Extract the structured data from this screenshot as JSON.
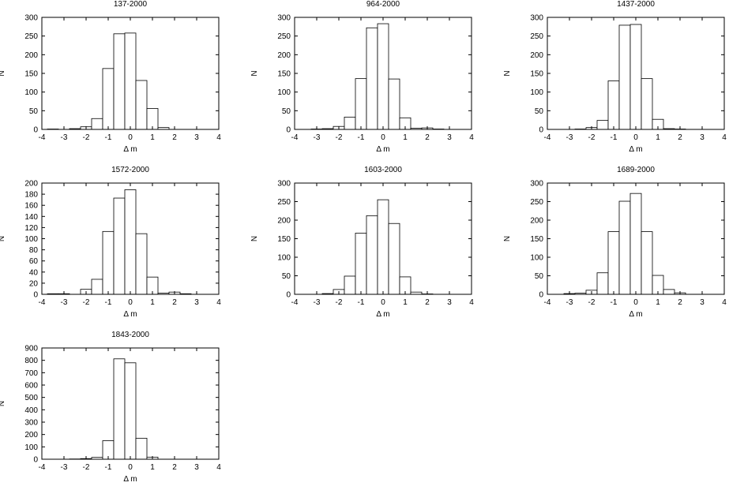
{
  "chart_data": [
    {
      "type": "bar",
      "title": "137-2000",
      "xlabel": "Δ m",
      "ylabel": "N",
      "xlim": [
        -4,
        4
      ],
      "ylim": [
        0,
        300
      ],
      "xticks": [
        "-4",
        "-3",
        "-2",
        "-1",
        "0",
        "1",
        "2",
        "3",
        "4"
      ],
      "yticks": [
        "0",
        "50",
        "100",
        "150",
        "200",
        "250",
        "300"
      ],
      "bin_width": 0.5,
      "bin_starts": [
        -3.75,
        -3.25,
        -2.75,
        -2.25,
        -1.75,
        -1.25,
        -0.75,
        -0.25,
        0.25,
        0.75,
        1.25,
        1.75,
        2.25,
        2.75,
        3.25
      ],
      "values": [
        1,
        0,
        2,
        7,
        29,
        163,
        256,
        258,
        131,
        56,
        5,
        0,
        0,
        0,
        0
      ]
    },
    {
      "type": "bar",
      "title": "964-2000",
      "xlabel": "Δ m",
      "ylabel": "N",
      "xlim": [
        -4,
        4
      ],
      "ylim": [
        0,
        300
      ],
      "xticks": [
        "-4",
        "-3",
        "-2",
        "-1",
        "0",
        "1",
        "2",
        "3",
        "4"
      ],
      "yticks": [
        "0",
        "50",
        "100",
        "150",
        "200",
        "250",
        "300"
      ],
      "bin_width": 0.5,
      "bin_starts": [
        -3.75,
        -3.25,
        -2.75,
        -2.25,
        -1.75,
        -1.25,
        -0.75,
        -0.25,
        0.25,
        0.75,
        1.25,
        1.75,
        2.25,
        2.75,
        3.25
      ],
      "values": [
        0,
        1,
        2,
        8,
        33,
        136,
        272,
        283,
        135,
        31,
        3,
        4,
        1,
        0,
        0
      ]
    },
    {
      "type": "bar",
      "title": "1437-2000",
      "xlabel": "Δ m",
      "ylabel": "N",
      "xlim": [
        -4,
        4
      ],
      "ylim": [
        0,
        300
      ],
      "xticks": [
        "-4",
        "-3",
        "-2",
        "-1",
        "0",
        "1",
        "2",
        "3",
        "4"
      ],
      "yticks": [
        "0",
        "50",
        "100",
        "150",
        "200",
        "250",
        "300"
      ],
      "bin_width": 0.5,
      "bin_starts": [
        -3.75,
        -3.25,
        -2.75,
        -2.25,
        -1.75,
        -1.25,
        -0.75,
        -0.25,
        0.25,
        0.75,
        1.25,
        1.75,
        2.25,
        2.75,
        3.25
      ],
      "values": [
        0,
        0,
        1,
        5,
        24,
        130,
        279,
        281,
        136,
        27,
        2,
        1,
        0,
        0,
        0
      ]
    },
    {
      "type": "bar",
      "title": "1572-2000",
      "xlabel": "Δ m",
      "ylabel": "N",
      "xlim": [
        -4,
        4
      ],
      "ylim": [
        0,
        200
      ],
      "xticks": [
        "-4",
        "-3",
        "-2",
        "-1",
        "0",
        "1",
        "2",
        "3",
        "4"
      ],
      "yticks": [
        "0",
        "20",
        "40",
        "60",
        "80",
        "100",
        "120",
        "140",
        "160",
        "180",
        "200"
      ],
      "bin_width": 0.5,
      "bin_starts": [
        -3.75,
        -3.25,
        -2.75,
        -2.25,
        -1.75,
        -1.25,
        -0.75,
        -0.25,
        0.25,
        0.75,
        1.25,
        1.75,
        2.25,
        2.75,
        3.25
      ],
      "values": [
        1,
        1,
        0,
        9,
        27,
        113,
        173,
        188,
        109,
        31,
        2,
        4,
        1,
        0,
        0
      ]
    },
    {
      "type": "bar",
      "title": "1603-2000",
      "xlabel": "Δ m",
      "ylabel": "N",
      "xlim": [
        -4,
        4
      ],
      "ylim": [
        0,
        300
      ],
      "xticks": [
        "-4",
        "-3",
        "-2",
        "-1",
        "0",
        "1",
        "2",
        "3",
        "4"
      ],
      "yticks": [
        "0",
        "50",
        "100",
        "150",
        "200",
        "250",
        "300"
      ],
      "bin_width": 0.5,
      "bin_starts": [
        -3.75,
        -3.25,
        -2.75,
        -2.25,
        -1.75,
        -1.25,
        -0.75,
        -0.25,
        0.25,
        0.75,
        1.25,
        1.75,
        2.25,
        2.75,
        3.25
      ],
      "values": [
        0,
        0,
        2,
        13,
        49,
        165,
        212,
        255,
        191,
        47,
        6,
        1,
        0,
        0,
        0
      ]
    },
    {
      "type": "bar",
      "title": "1689-2000",
      "xlabel": "Δ m",
      "ylabel": "N",
      "xlim": [
        -4,
        4
      ],
      "ylim": [
        0,
        300
      ],
      "xticks": [
        "-4",
        "-3",
        "-2",
        "-1",
        "0",
        "1",
        "2",
        "3",
        "4"
      ],
      "yticks": [
        "0",
        "50",
        "100",
        "150",
        "200",
        "250",
        "300"
      ],
      "bin_width": 0.5,
      "bin_starts": [
        -3.75,
        -3.25,
        -2.75,
        -2.25,
        -1.75,
        -1.25,
        -0.75,
        -0.25,
        0.25,
        0.75,
        1.25,
        1.75,
        2.25,
        2.75,
        3.25
      ],
      "values": [
        0,
        2,
        3,
        11,
        58,
        169,
        251,
        272,
        169,
        51,
        13,
        4,
        0,
        0,
        0
      ]
    },
    {
      "type": "bar",
      "title": "1843-2000",
      "xlabel": "Δ m",
      "ylabel": "N",
      "xlim": [
        -4,
        4
      ],
      "ylim": [
        0,
        900
      ],
      "xticks": [
        "-4",
        "-3",
        "-2",
        "-1",
        "0",
        "1",
        "2",
        "3",
        "4"
      ],
      "yticks": [
        "0",
        "100",
        "200",
        "300",
        "400",
        "500",
        "600",
        "700",
        "800",
        "900"
      ],
      "bin_width": 0.5,
      "bin_starts": [
        -3.75,
        -3.25,
        -2.75,
        -2.25,
        -1.75,
        -1.25,
        -0.75,
        -0.25,
        0.25,
        0.75,
        1.25,
        1.75,
        2.25,
        2.75,
        3.25
      ],
      "values": [
        0,
        0,
        2,
        5,
        15,
        150,
        812,
        780,
        170,
        17,
        0,
        0,
        0,
        0,
        0
      ]
    }
  ]
}
